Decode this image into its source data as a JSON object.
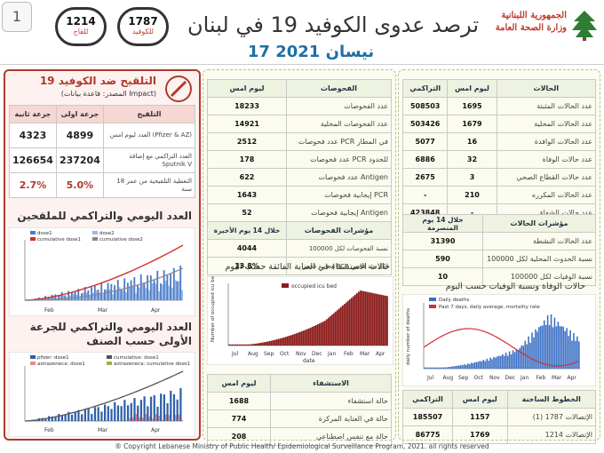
{
  "page_number": "1",
  "header": {
    "title": "ترصد عدوى الكوفيد 19 في لبنان",
    "date": "17 نيسان 2021",
    "ministry_line1": "الجمهورية اللبنانية",
    "ministry_line2": "وزارة الصحة العامة"
  },
  "badges": {
    "covid_value": "1787",
    "covid_label": "للكوفيد",
    "vaccine_value": "1214",
    "vaccine_label": "للقاح"
  },
  "vaccination": {
    "title": "التلقيح ضد الكوفيد 19",
    "source": "(المصدر: قاعدة بيانات Impact)",
    "columns": [
      "التلقيح",
      "جرعة اولى",
      "جرعة ثانية"
    ],
    "rows": [
      {
        "label": "العدد ليوم امس (Pfizer & AZ)",
        "dose1": "4899",
        "dose2": "4323"
      },
      {
        "label": "العدد التراكمي مع إضافة Sputnik V",
        "dose1": "237204",
        "dose2": "126654"
      },
      {
        "label": "التغطية التلقيحية من عمر 18 سنة",
        "dose1": "5.0%",
        "dose2": "2.7%"
      }
    ],
    "chart1_title": "العدد اليومي والتراكمي للملقحين",
    "chart1_legend": [
      "dose1",
      "dose2",
      "cumulative dose1",
      "cumulative dose2"
    ],
    "chart2_title": "العدد اليومي والتراكمي للجرعة الأولى حسب الصنف",
    "chart2_legend": [
      "pfizer: dose1",
      "cumulative: dose1",
      "astrazeneca: dose1",
      "astrazeneca: cumulative dose1"
    ],
    "axis_months": [
      "Feb",
      "Mar",
      "Apr"
    ]
  },
  "tests": {
    "columns": [
      "الفحوصات",
      "ليوم امس"
    ],
    "rows": [
      {
        "label": "عدد الفحوصات",
        "value": "18233"
      },
      {
        "label": "عدد الفحوصات المحلية",
        "value": "14921"
      },
      {
        "label": "عدد فحوصات PCR في المطار",
        "value": "2512"
      },
      {
        "label": "عدد فحوصات PCR للحدود",
        "value": "178"
      },
      {
        "label": "عدد فحوصات Antigen",
        "value": "622"
      },
      {
        "label": "إيجابية فحوصات PCR",
        "value": "1643"
      },
      {
        "label": "إيجابية فحوصات Antigen",
        "value": "52"
      }
    ],
    "indicators_header": "مؤشرات الفحوصات",
    "indicators_period": "خلال 14 يوم الأخيرة",
    "indicators": [
      {
        "label": "نسبة الفحوصات لكل 100000",
        "value": "4044"
      },
      {
        "label": "إيجابية فحص PCR لكل مئة فحص",
        "value": "13.8%"
      }
    ]
  },
  "icu_chart": {
    "title": "حالات الاستشفاء في العناية الفائقة حسب اليوم",
    "legend": "occupied icu bed",
    "ylabel": "Number of occupied icu beds",
    "xlabel": "date",
    "months": [
      "Jul",
      "Aug",
      "Sep",
      "Oct",
      "Nov",
      "Dec",
      "Jan",
      "Feb",
      "Mar",
      "Apr"
    ]
  },
  "hospital": {
    "columns": [
      "الاستشفاء",
      "ليوم امس"
    ],
    "rows": [
      {
        "label": "حالة استشفاء",
        "value": "1688"
      },
      {
        "label": "حالة في العناية المركزة",
        "value": "774"
      },
      {
        "label": "حالة مع تنفس اصطناعي",
        "value": "208"
      }
    ]
  },
  "cases": {
    "columns": [
      "الحالات",
      "ليوم امس",
      "التراكمي"
    ],
    "rows": [
      {
        "label": "عدد الحالات المثبتة",
        "yesterday": "1695",
        "total": "508503"
      },
      {
        "label": "عدد الحالات المحلية",
        "yesterday": "1679",
        "total": "503426"
      },
      {
        "label": "عدد الحالات الوافدة",
        "yesterday": "16",
        "total": "5077"
      },
      {
        "label": "عدد حالات الوفاة",
        "yesterday": "32",
        "total": "6886"
      },
      {
        "label": "عدد حالات القطاع الصحي",
        "yesterday": "3",
        "total": "2675"
      },
      {
        "label": "عدد الحالات المكرره",
        "yesterday": "210",
        "total": "-"
      },
      {
        "label": "عدد حالات الشفاء",
        "yesterday": "-",
        "total": "423848"
      }
    ],
    "indicators_header": "مؤشرات الحالات",
    "indicators_period": "خلال 14 يوم المنصرمة",
    "indicators": [
      {
        "label": "عدد الحالات النشطة",
        "value": "31390"
      },
      {
        "label": "نسبة الحدوث المحلية لكل 100000",
        "value": "590"
      },
      {
        "label": "نسبة الوفيات لكل 100000",
        "value": "10"
      }
    ]
  },
  "deaths_chart": {
    "title": "حالات الوفاة ونسبة الوفيات حسب اليوم",
    "legend": [
      "Daily deaths",
      "Past 7 days, daily average, mortality rate"
    ],
    "ylabel": "daily number of deaths",
    "months": [
      "Jul",
      "Aug",
      "Sep",
      "Oct",
      "Nov",
      "Dec",
      "Jan",
      "Feb",
      "Mar",
      "Apr"
    ]
  },
  "hotlines": {
    "columns": [
      "الخطوط الساخنة",
      "ليوم امس",
      "التراكمي"
    ],
    "rows": [
      {
        "label": "الإتصالات 1787 (1)",
        "yesterday": "1157",
        "total": "185507"
      },
      {
        "label": "الإتصالات 1214",
        "yesterday": "1769",
        "total": "86775"
      }
    ]
  },
  "footer": "® Copyright Lebanese Ministry of Public Health/ Epidemiological Surveillance Program, 2021. all rights reserved",
  "colors": {
    "accent": "#1f6fa5",
    "alert": "#c0392b",
    "icu_bar": "#8b1a1a",
    "deaths_bar": "#3a6fc4"
  }
}
